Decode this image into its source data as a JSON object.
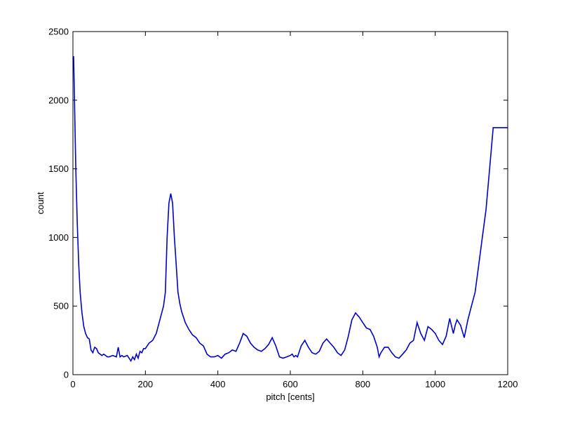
{
  "chart_data": {
    "type": "line",
    "xlabel": "pitch [cents]",
    "ylabel": "count",
    "xlim": [
      0,
      1200
    ],
    "ylim": [
      0,
      2500
    ],
    "xticks": [
      "0",
      "200",
      "400",
      "600",
      "800",
      "1000",
      "1200"
    ],
    "yticks": [
      "0",
      "500",
      "1000",
      "1500",
      "2000",
      "2500"
    ],
    "grid": false,
    "line_color": "#0000cc",
    "series": [
      {
        "x": [
          0,
          2,
          5,
          8,
          12,
          16,
          20,
          25,
          30,
          35,
          40,
          45,
          50,
          55,
          60,
          65,
          70,
          75,
          80,
          85,
          90,
          95,
          100,
          110,
          120,
          125,
          130,
          135,
          140,
          150,
          160,
          165,
          170,
          175,
          180,
          185,
          190,
          195,
          200,
          210,
          220,
          230,
          240,
          250,
          255,
          260,
          265,
          270,
          275,
          280,
          285,
          290,
          295,
          300,
          305,
          310,
          320,
          330,
          340,
          350,
          360,
          370,
          380,
          390,
          400,
          410,
          420,
          430,
          440,
          450,
          460,
          470,
          480,
          490,
          500,
          510,
          520,
          530,
          540,
          550,
          560,
          570,
          580,
          590,
          600,
          605,
          610,
          615,
          620,
          630,
          640,
          650,
          660,
          670,
          680,
          690,
          700,
          710,
          720,
          730,
          740,
          750,
          760,
          770,
          780,
          790,
          800,
          810,
          820,
          830,
          840,
          845,
          850,
          860,
          870,
          880,
          890,
          900,
          910,
          920,
          930,
          940,
          950,
          960,
          970,
          980,
          990,
          1000,
          1010,
          1020,
          1030,
          1040,
          1050,
          1055,
          1060,
          1070,
          1080,
          1090,
          1100,
          1110,
          1120,
          1130,
          1140,
          1150,
          1160,
          1170,
          1180,
          1185,
          1190,
          1195,
          1200
        ],
        "y": [
          2300,
          2320,
          1900,
          1500,
          1100,
          800,
          600,
          450,
          350,
          300,
          270,
          260,
          180,
          160,
          200,
          190,
          160,
          150,
          140,
          150,
          140,
          130,
          130,
          140,
          130,
          200,
          130,
          140,
          130,
          140,
          100,
          130,
          110,
          150,
          120,
          170,
          160,
          190,
          190,
          230,
          250,
          300,
          400,
          500,
          600,
          1000,
          1250,
          1320,
          1250,
          1000,
          800,
          600,
          520,
          460,
          420,
          380,
          330,
          290,
          270,
          230,
          210,
          150,
          130,
          130,
          140,
          120,
          150,
          160,
          180,
          170,
          230,
          300,
          280,
          230,
          200,
          180,
          170,
          190,
          220,
          270,
          210,
          130,
          120,
          130,
          140,
          150,
          130,
          140,
          130,
          210,
          250,
          200,
          160,
          150,
          170,
          230,
          260,
          230,
          200,
          160,
          140,
          180,
          280,
          400,
          450,
          420,
          380,
          340,
          330,
          280,
          200,
          130,
          160,
          200,
          200,
          160,
          130,
          120,
          150,
          180,
          230,
          250,
          380,
          300,
          250,
          350,
          330,
          300,
          250,
          220,
          280,
          410,
          300,
          360,
          400,
          360,
          270,
          400,
          500,
          600,
          800,
          1000,
          1200,
          1500,
          1800,
          1800,
          1800,
          1800,
          1800,
          1800,
          1800
        ]
      }
    ]
  }
}
